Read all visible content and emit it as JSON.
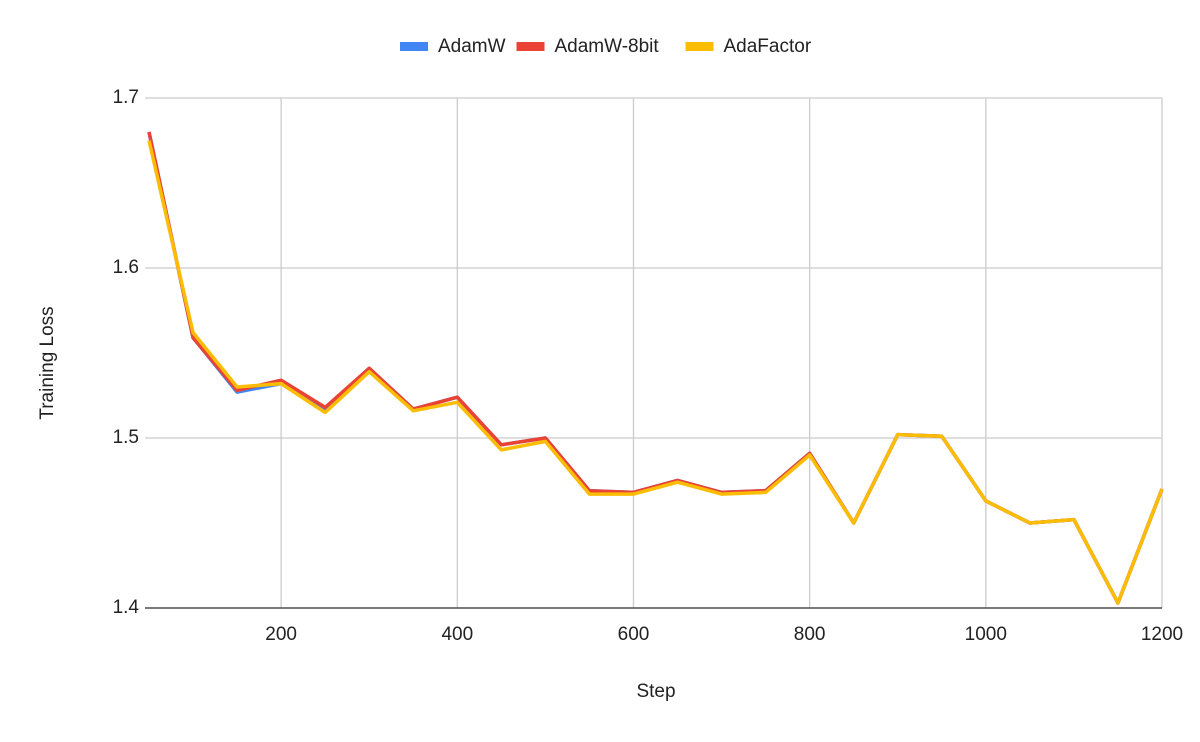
{
  "chart_data": {
    "type": "line",
    "xlabel": "Step",
    "ylabel": "Training Loss",
    "x": [
      50,
      100,
      150,
      200,
      250,
      300,
      350,
      400,
      450,
      500,
      550,
      600,
      650,
      700,
      750,
      800,
      850,
      900,
      950,
      1000,
      1050,
      1100,
      1150,
      1200
    ],
    "series": [
      {
        "name": "AdamW",
        "color": "#4285f4",
        "values": [
          1.68,
          1.559,
          1.527,
          1.532,
          1.517,
          1.541,
          1.517,
          1.524,
          1.496,
          1.5,
          1.469,
          1.468,
          1.475,
          1.468,
          1.469,
          1.491,
          1.45,
          1.502,
          1.501,
          1.463,
          1.45,
          1.452,
          1.403,
          1.47
        ]
      },
      {
        "name": "AdamW-8bit",
        "color": "#ea4335",
        "values": [
          1.68,
          1.559,
          1.528,
          1.534,
          1.518,
          1.541,
          1.517,
          1.524,
          1.496,
          1.5,
          1.469,
          1.468,
          1.475,
          1.468,
          1.469,
          1.491,
          1.45,
          1.502,
          1.501,
          1.463,
          1.45,
          1.452,
          1.403,
          1.47
        ]
      },
      {
        "name": "AdaFactor",
        "color": "#fbbc04",
        "values": [
          1.675,
          1.562,
          1.53,
          1.532,
          1.515,
          1.539,
          1.516,
          1.521,
          1.493,
          1.498,
          1.467,
          1.467,
          1.474,
          1.467,
          1.468,
          1.49,
          1.45,
          1.502,
          1.501,
          1.463,
          1.45,
          1.452,
          1.403,
          1.47
        ]
      }
    ],
    "xlim": [
      50,
      1200
    ],
    "xticks": [
      200,
      400,
      600,
      800,
      1000,
      1200
    ],
    "ylim": [
      1.4,
      1.7
    ],
    "yticks": [
      1.4,
      1.5,
      1.6,
      1.7
    ],
    "grid": true,
    "legend": "top"
  }
}
